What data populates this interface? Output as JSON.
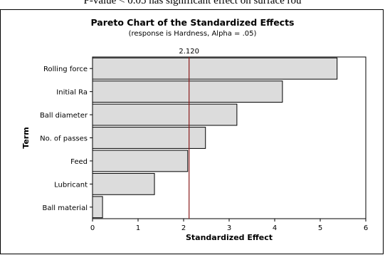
{
  "caption_fragment": "P-value < 0.05 has significant effect on surface rou",
  "chart_data": {
    "type": "bar",
    "orientation": "horizontal",
    "title": "Pareto Chart of the Standardized Effects",
    "subtitle": "(response is Hardness, Alpha = .05)",
    "xlabel": "Standardized Effect",
    "ylabel": "Term",
    "categories": [
      "Rolling force",
      "Initial Ra",
      "Ball diameter",
      "No. of passes",
      "Feed",
      "Lubricant",
      "Ball material"
    ],
    "values": [
      5.37,
      4.17,
      3.17,
      2.48,
      2.09,
      1.36,
      0.22
    ],
    "xlim": [
      0,
      6
    ],
    "xticks": [
      "0",
      "1",
      "2",
      "3",
      "4",
      "5",
      "6"
    ],
    "reference_line": {
      "value": 2.12,
      "label": "2.120"
    },
    "bar_color": "#dcdcdc",
    "reference_color": "#8b1a1a",
    "grid": false
  }
}
